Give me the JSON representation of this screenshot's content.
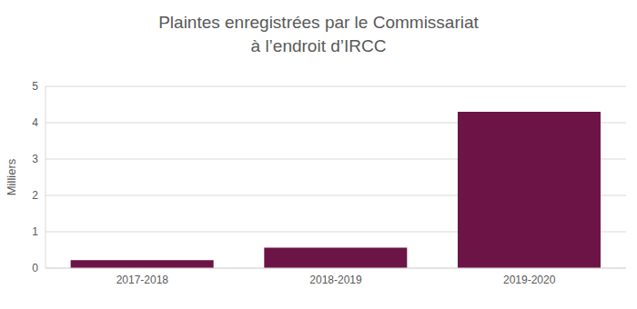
{
  "chart_data": {
    "type": "bar",
    "title": "Plaintes enregistrées par le Commissariat\nà l’endroit d’IRCC",
    "y_label": "Milliers",
    "categories": [
      "2017-2018",
      "2018-2019",
      "2019-2020"
    ],
    "values": [
      0.22,
      0.56,
      4.3
    ],
    "color": "#6c1446",
    "ylim": [
      0,
      5
    ],
    "yticks": [
      0,
      1,
      2,
      3,
      4,
      5
    ],
    "grid": true
  }
}
